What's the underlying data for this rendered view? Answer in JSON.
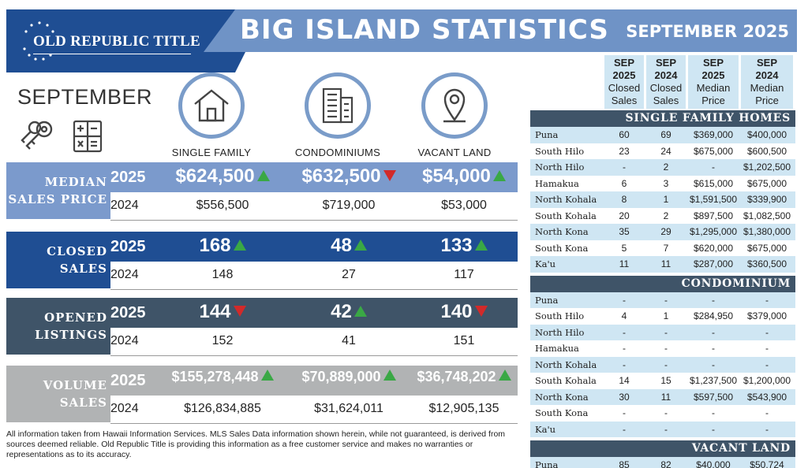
{
  "brand": {
    "logo_text": "OLD REPUBLIC TITLE",
    "blue": "#1f4e93",
    "light_blue": "#6f93c6"
  },
  "header": {
    "title": "BIG ISLAND STATISTICS",
    "subtitle": "SEPTEMBER 2025"
  },
  "month_label": "SEPTEMBER",
  "property_types": [
    {
      "label": "SINGLE FAMILY",
      "icon": "house-icon"
    },
    {
      "label": "CONDOMINIUMS",
      "icon": "building-icon"
    },
    {
      "label": "VACANT LAND",
      "icon": "location-pin-icon"
    }
  ],
  "stats": [
    {
      "label_line1": "MEDIAN",
      "label_line2": "SALES PRICE",
      "color": "#7b9acc",
      "label_color": "#7b9acc",
      "year_current": "2025",
      "year_prior": "2024",
      "value_size": "24px",
      "current": [
        "$624,500",
        "$632,500",
        "$54,000"
      ],
      "trend": [
        "up",
        "down",
        "up"
      ],
      "prior": [
        "$556,500",
        "$719,000",
        "$53,000"
      ]
    },
    {
      "label_line1": "CLOSED",
      "label_line2": "SALES",
      "color": "#1f4e93",
      "label_color": "#1f4e93",
      "year_current": "2025",
      "year_prior": "2024",
      "value_size": "24px",
      "current": [
        "168",
        "48",
        "133"
      ],
      "trend": [
        "up",
        "up",
        "up"
      ],
      "prior": [
        "148",
        "27",
        "117"
      ]
    },
    {
      "label_line1": "OPENED",
      "label_line2": "LISTINGS",
      "color": "#3f5468",
      "label_color": "#3f5468",
      "year_current": "2025",
      "year_prior": "2024",
      "value_size": "24px",
      "current": [
        "144",
        "42",
        "140"
      ],
      "trend": [
        "down",
        "up",
        "down"
      ],
      "prior": [
        "152",
        "41",
        "151"
      ]
    },
    {
      "label_line1": "VOLUME",
      "label_line2": "SALES",
      "color": "#b1b3b4",
      "label_color": "#b1b3b4",
      "year_current": "2025",
      "year_prior": "2024",
      "value_size": "18px",
      "current": [
        "$155,278,448",
        "$70,889,000",
        "$36,748,202"
      ],
      "trend": [
        "up",
        "up",
        "up"
      ],
      "prior": [
        "$126,834,885",
        "$31,624,011",
        "$12,905,135"
      ]
    }
  ],
  "disclaimer": "All information taken from Hawaii Information Services.  MLS Sales Data information shown herein, while not guaranteed, is derived from sources deemed reliable.  Old Republic Title is providing this information as a free customer service and makes no warranties or representations as to its accuracy.",
  "table": {
    "columns": [
      {
        "line1": "SEP",
        "line2": "2025",
        "line3": "Closed",
        "line4": "Sales"
      },
      {
        "line1": "SEP",
        "line2": "2024",
        "line3": "Closed",
        "line4": "Sales"
      },
      {
        "line1": "SEP",
        "line2": "2025",
        "line3": "Median",
        "line4": "Price"
      },
      {
        "line1": "SEP",
        "line2": "2024",
        "line3": "Median",
        "line4": "Price"
      }
    ],
    "sections": [
      {
        "title": "SINGLE FAMILY HOMES",
        "rows": [
          {
            "area": "Puna",
            "c25": "60",
            "c24": "69",
            "m25": "$369,000",
            "m24": "$400,000"
          },
          {
            "area": "South Hilo",
            "c25": "23",
            "c24": "24",
            "m25": "$675,000",
            "m24": "$600,500"
          },
          {
            "area": "North Hilo",
            "c25": "-",
            "c24": "2",
            "m25": "-",
            "m24": "$1,202,500"
          },
          {
            "area": "Hamakua",
            "c25": "6",
            "c24": "3",
            "m25": "$615,000",
            "m24": "$675,000"
          },
          {
            "area": "North Kohala",
            "c25": "8",
            "c24": "1",
            "m25": "$1,591,500",
            "m24": "$339,900"
          },
          {
            "area": "South Kohala",
            "c25": "20",
            "c24": "2",
            "m25": "$897,500",
            "m24": "$1,082,500"
          },
          {
            "area": "North Kona",
            "c25": "35",
            "c24": "29",
            "m25": "$1,295,000",
            "m24": "$1,380,000"
          },
          {
            "area": "South Kona",
            "c25": "5",
            "c24": "7",
            "m25": "$620,000",
            "m24": "$675,000"
          },
          {
            "area": "Ka'u",
            "c25": "11",
            "c24": "11",
            "m25": "$287,000",
            "m24": "$360,500"
          }
        ]
      },
      {
        "title": "CONDOMINIUM",
        "rows": [
          {
            "area": "Puna",
            "c25": "-",
            "c24": "-",
            "m25": "-",
            "m24": "-"
          },
          {
            "area": "South Hilo",
            "c25": "4",
            "c24": "1",
            "m25": "$284,950",
            "m24": "$379,000"
          },
          {
            "area": "North Hilo",
            "c25": "-",
            "c24": "-",
            "m25": "-",
            "m24": "-"
          },
          {
            "area": "Hamakua",
            "c25": "-",
            "c24": "-",
            "m25": "-",
            "m24": "-"
          },
          {
            "area": "North Kohala",
            "c25": "-",
            "c24": "-",
            "m25": "-",
            "m24": "-"
          },
          {
            "area": "South Kohala",
            "c25": "14",
            "c24": "15",
            "m25": "$1,237,500",
            "m24": "$1,200,000"
          },
          {
            "area": "North Kona",
            "c25": "30",
            "c24": "11",
            "m25": "$597,500",
            "m24": "$543,900"
          },
          {
            "area": "South Kona",
            "c25": "-",
            "c24": "-",
            "m25": "-",
            "m24": "-"
          },
          {
            "area": "Ka'u",
            "c25": "-",
            "c24": "-",
            "m25": "-",
            "m24": "-"
          }
        ]
      },
      {
        "title": "VACANT LAND",
        "rows": [
          {
            "area": "Puna",
            "c25": "85",
            "c24": "82",
            "m25": "$40,000",
            "m24": "$50,724"
          }
        ]
      }
    ]
  }
}
